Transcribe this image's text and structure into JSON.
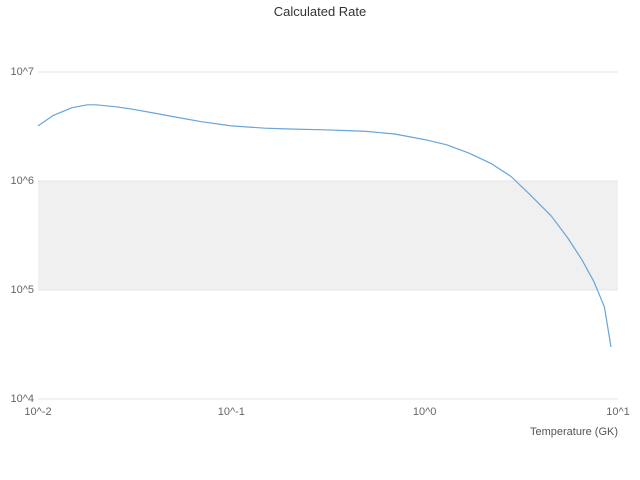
{
  "chart_data": {
    "type": "line",
    "title": "Calculated Rate",
    "xlabel": "Temperature (GK)",
    "ylabel": "",
    "x_scale": "log",
    "y_scale": "log",
    "xlim": [
      0.01,
      10
    ],
    "ylim": [
      10000,
      10000000
    ],
    "grid_on": true,
    "legend": "none",
    "x_ticks": [
      {
        "value": 0.01,
        "label": "10^-2"
      },
      {
        "value": 0.1,
        "label": "10^-1"
      },
      {
        "value": 1,
        "label": "10^0"
      },
      {
        "value": 10,
        "label": "10^1"
      }
    ],
    "y_ticks": [
      {
        "value": 10000,
        "label": "10^4"
      },
      {
        "value": 100000,
        "label": "10^5"
      },
      {
        "value": 1000000,
        "label": "10^6"
      },
      {
        "value": 10000000,
        "label": "10^7"
      }
    ],
    "band": {
      "from": 100000,
      "to": 1000000,
      "color": "#f0f0f0"
    },
    "grid_color": "#e6e6e6",
    "series": [
      {
        "name": "Calculated Rate",
        "color": "#68a5d9",
        "x": [
          0.01,
          0.012,
          0.015,
          0.018,
          0.02,
          0.025,
          0.03,
          0.04,
          0.05,
          0.07,
          0.1,
          0.15,
          0.2,
          0.3,
          0.4,
          0.5,
          0.7,
          1.0,
          1.3,
          1.7,
          2.2,
          2.8,
          3.5,
          4.5,
          5.5,
          6.5,
          7.5,
          8.5,
          9.2
        ],
        "y": [
          3200000,
          4000000,
          4700000,
          5000000,
          5000000,
          4800000,
          4600000,
          4200000,
          3900000,
          3500000,
          3200000,
          3050000,
          3000000,
          2950000,
          2900000,
          2850000,
          2700000,
          2400000,
          2150000,
          1800000,
          1450000,
          1100000,
          750000,
          480000,
          300000,
          190000,
          120000,
          70000,
          30000
        ]
      }
    ]
  }
}
